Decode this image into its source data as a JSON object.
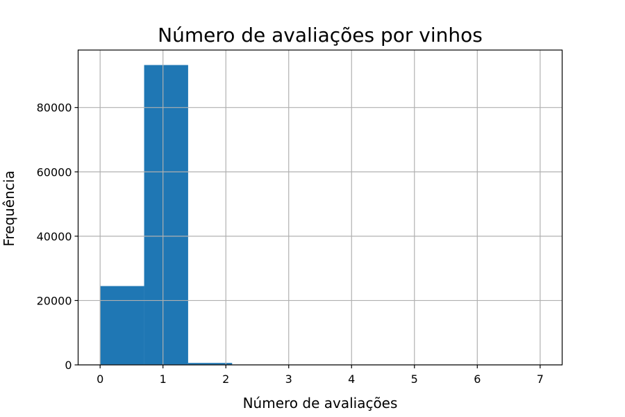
{
  "chart_data": {
    "type": "bar",
    "subtype": "histogram",
    "title": "Número de avaliações por vinhos",
    "xlabel": "Número de avaliações",
    "ylabel": "Frequência",
    "bins": [
      {
        "x0": 0.0,
        "x1": 0.7,
        "value": 24500
      },
      {
        "x0": 0.7,
        "x1": 1.4,
        "value": 93200
      },
      {
        "x0": 1.4,
        "x1": 2.1,
        "value": 600
      },
      {
        "x0": 2.1,
        "x1": 2.8,
        "value": 40
      },
      {
        "x0": 2.8,
        "x1": 3.5,
        "value": 10
      },
      {
        "x0": 3.5,
        "x1": 4.2,
        "value": 5
      },
      {
        "x0": 4.2,
        "x1": 4.9,
        "value": 2
      },
      {
        "x0": 4.9,
        "x1": 5.6,
        "value": 1
      },
      {
        "x0": 5.6,
        "x1": 6.3,
        "value": 1
      },
      {
        "x0": 6.3,
        "x1": 7.0,
        "value": 1
      }
    ],
    "xlim": [
      -0.35,
      7.35
    ],
    "ylim": [
      0,
      97860
    ],
    "xticks": [
      0,
      1,
      2,
      3,
      4,
      5,
      6,
      7
    ],
    "yticks": [
      0,
      20000,
      40000,
      60000,
      80000
    ],
    "grid": true,
    "bar_color": "#1f77b4",
    "grid_color": "#b0b0b0"
  }
}
